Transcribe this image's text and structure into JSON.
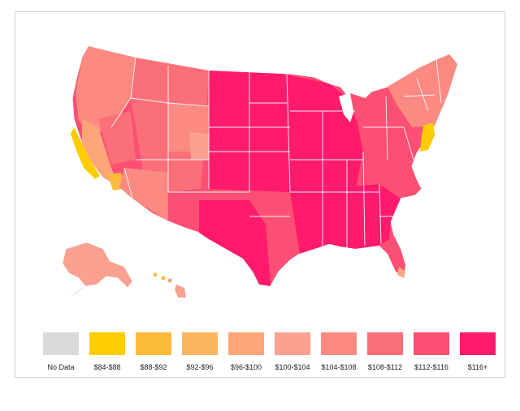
{
  "legend": {
    "items": [
      {
        "label": "No Data",
        "color": "#dadada"
      },
      {
        "label": "$84-$88",
        "color": "#ffcc00"
      },
      {
        "label": "$88-$92",
        "color": "#fdbb3b"
      },
      {
        "label": "$92-$96",
        "color": "#fdb562"
      },
      {
        "label": "$96-$100",
        "color": "#fca67a"
      },
      {
        "label": "$100-$104",
        "color": "#fba191"
      },
      {
        "label": "$104-$108",
        "color": "#fa8a82"
      },
      {
        "label": "$108-$112",
        "color": "#fb6f79"
      },
      {
        "label": "$112-$116",
        "color": "#fc4f73"
      },
      {
        "label": "$116+",
        "color": "#ff1a6c"
      }
    ]
  }
}
